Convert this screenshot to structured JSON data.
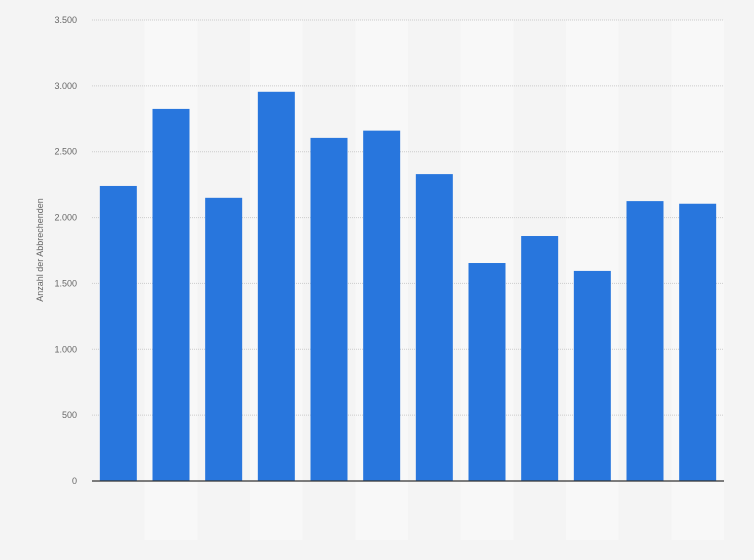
{
  "chart_data": {
    "type": "bar",
    "title": "",
    "xlabel": "",
    "ylabel": "Anzahl der Abbrechenden",
    "ylim": [
      0,
      3500
    ],
    "yticks": [
      0,
      500,
      1000,
      1500,
      2000,
      2500,
      3000,
      3500
    ],
    "ytick_labels": [
      "0",
      "500",
      "1.000",
      "1.500",
      "2.000",
      "2.500",
      "3.000",
      "3.500"
    ],
    "values": [
      2240,
      2825,
      2150,
      2955,
      2605,
      2660,
      2330,
      1655,
      1860,
      1595,
      2125,
      2105
    ],
    "grid": true,
    "legend": "none",
    "colors": {
      "bar": "#2876dd",
      "background": "#f4f4f4",
      "band_light": "#f8f8f8",
      "axis": "#333333",
      "grid": "#cccccc"
    }
  }
}
